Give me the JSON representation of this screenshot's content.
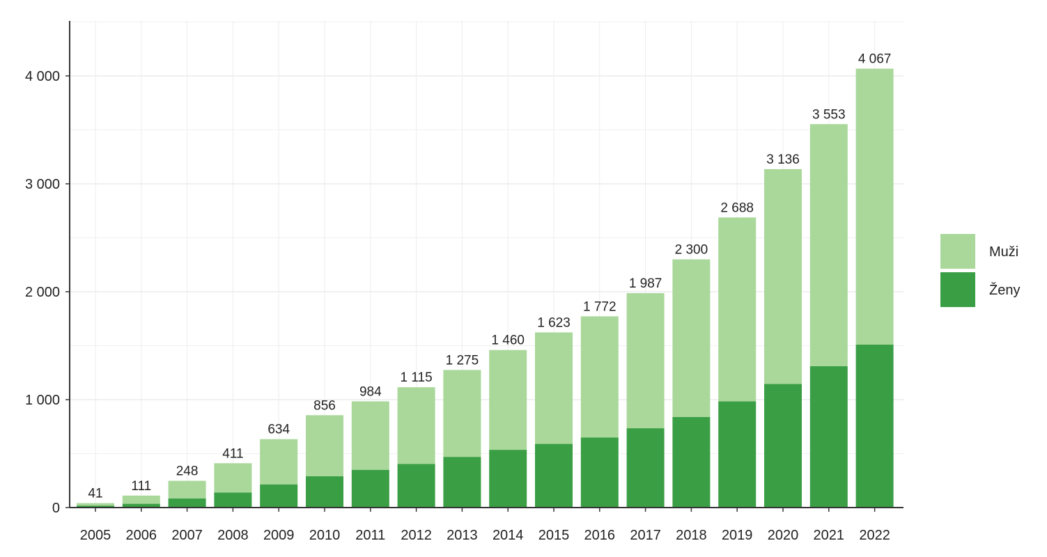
{
  "chart_data": {
    "type": "bar",
    "stacked": true,
    "categories": [
      "2005",
      "2006",
      "2007",
      "2008",
      "2009",
      "2010",
      "2011",
      "2012",
      "2013",
      "2014",
      "2015",
      "2016",
      "2017",
      "2018",
      "2019",
      "2020",
      "2021",
      "2022"
    ],
    "series": [
      {
        "name": "Ženy",
        "color": "#3a9e45",
        "values": [
          18,
          35,
          85,
          140,
          215,
          290,
          350,
          405,
          470,
          535,
          590,
          650,
          735,
          840,
          985,
          1145,
          1310,
          1510
        ]
      },
      {
        "name": "Muži",
        "color": "#a9d89a",
        "values": [
          23,
          76,
          163,
          271,
          419,
          566,
          634,
          710,
          805,
          925,
          1033,
          1122,
          1252,
          1460,
          1703,
          1991,
          2243,
          2557
        ]
      }
    ],
    "totals": [
      41,
      111,
      248,
      411,
      634,
      856,
      984,
      1115,
      1275,
      1460,
      1623,
      1772,
      1987,
      2300,
      2688,
      3136,
      3553,
      4067
    ],
    "total_labels": [
      "41",
      "111",
      "248",
      "411",
      "634",
      "856",
      "984",
      "1 115",
      "1 275",
      "1 460",
      "1 623",
      "1 772",
      "1 987",
      "2 300",
      "2 688",
      "3 136",
      "3 553",
      "4 067"
    ],
    "yticks": [
      0,
      1000,
      2000,
      3000,
      4000
    ],
    "ytick_labels": [
      "0",
      "1 000",
      "2 000",
      "3 000",
      "4 000"
    ],
    "ylim": [
      0,
      4500
    ],
    "grid": true,
    "legend": {
      "position": "right",
      "items": [
        {
          "label": "Muži",
          "color": "#a9d89a"
        },
        {
          "label": "Ženy",
          "color": "#3a9e45"
        }
      ]
    },
    "title": "",
    "xlabel": "",
    "ylabel": ""
  }
}
